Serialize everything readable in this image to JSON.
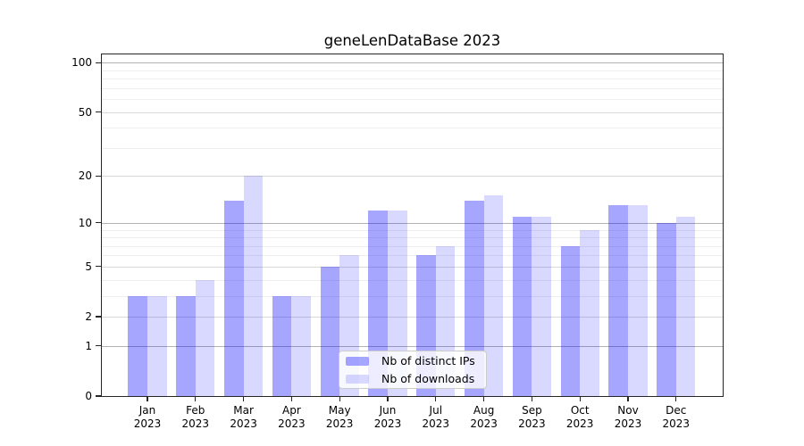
{
  "title": "geneLenDataBase 2023",
  "colors": {
    "bar_ips": "rgba(0,0,255,0.35)",
    "bar_downloads": "rgba(0,0,255,0.15)",
    "grid_major": "#b2b2b2",
    "grid_labeled_minor": "#d9d9d9",
    "grid_minor": "#eeeeee",
    "spine": "#262626"
  },
  "y_axis": {
    "tick_labels": [
      "100",
      "50",
      "20",
      "10",
      "5",
      "2",
      "1",
      "0"
    ]
  },
  "x_axis": {
    "year": "2023",
    "months": [
      "Jan",
      "Feb",
      "Mar",
      "Apr",
      "May",
      "Jun",
      "Jul",
      "Aug",
      "Sep",
      "Oct",
      "Nov",
      "Dec"
    ]
  },
  "chart_data": {
    "type": "bar",
    "title": "geneLenDataBase 2023",
    "categories": [
      "Jan 2023",
      "Feb 2023",
      "Mar 2023",
      "Apr 2023",
      "May 2023",
      "Jun 2023",
      "Jul 2023",
      "Aug 2023",
      "Sep 2023",
      "Oct 2023",
      "Nov 2023",
      "Dec 2023"
    ],
    "series": [
      {
        "name": "Nb of distinct IPs",
        "values": [
          3,
          3,
          14,
          3,
          5,
          12,
          6,
          14,
          11,
          7,
          13,
          10
        ]
      },
      {
        "name": "Nb of downloads",
        "values": [
          3,
          4,
          20,
          3,
          6,
          12,
          7,
          15,
          11,
          9,
          13,
          11
        ]
      }
    ],
    "yscale": "log1p",
    "yticks": [
      0,
      1,
      2,
      5,
      10,
      20,
      50,
      100
    ],
    "ylim": [
      0,
      112
    ],
    "xlabel": "",
    "ylabel": "",
    "grid": true,
    "legend_position": "lower center"
  }
}
